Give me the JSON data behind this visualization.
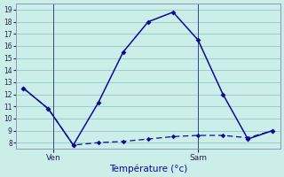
{
  "line1_x": [
    0,
    1,
    2,
    3,
    4,
    5,
    6,
    7,
    8,
    9,
    10
  ],
  "line1_y": [
    12.5,
    10.8,
    7.8,
    11.3,
    15.5,
    18.0,
    18.8,
    16.5,
    12.0,
    8.3,
    9.0
  ],
  "line2_x": [
    0,
    1,
    2,
    3,
    4,
    5,
    6,
    7,
    8,
    9,
    10
  ],
  "line2_y": [
    12.5,
    10.8,
    7.8,
    8.0,
    8.1,
    8.3,
    8.5,
    8.6,
    8.6,
    8.4,
    9.0
  ],
  "line1_color": "#0a0a99",
  "line2_color": "#0a0a99",
  "bg_color": "#cceee8",
  "grid_color": "#99cccc",
  "xlabel": "Température (°c)",
  "ylim": [
    7.5,
    19.5
  ],
  "yticks": [
    8,
    9,
    10,
    11,
    12,
    13,
    14,
    15,
    16,
    17,
    18,
    19
  ],
  "xlim": [
    -0.3,
    10.3
  ],
  "ven_x": 1.2,
  "sam_x": 7.0,
  "xtick_positions": [
    1.2,
    7.0
  ],
  "xtick_labels": [
    "Ven",
    "Sam"
  ]
}
